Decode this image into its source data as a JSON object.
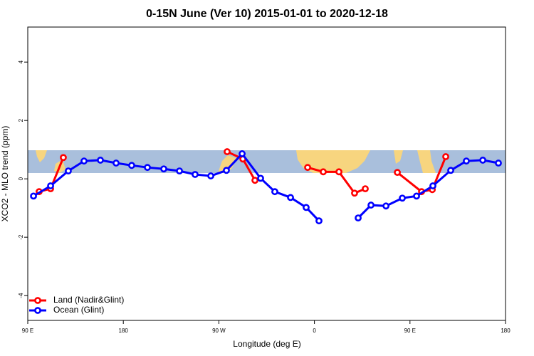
{
  "chart_data": {
    "type": "line",
    "title": "0-15N June (Ver 10)   2015-01-01 to 2020-12-18",
    "xlabel": "Longitude (deg E)",
    "ylabel": "XCO2 - MLO trend (ppm)",
    "xlim": [
      90,
      540
    ],
    "ylim": [
      -4.85,
      5.2
    ],
    "xticks": [
      {
        "value": 90,
        "label": "90 E"
      },
      180,
      {
        "value": 270,
        "label": "90 W"
      },
      {
        "value": 360,
        "label": "0"
      },
      {
        "value": 450,
        "label": "90 E"
      },
      {
        "value": 540,
        "label": "180"
      }
    ],
    "yticks": [
      -4,
      -2,
      0,
      2,
      4
    ],
    "legend": "lower left",
    "series": [
      {
        "name": "Land (Nadir&Glint)",
        "color": "#ff0000",
        "x": [
          100.7,
          111.5,
          123.5,
          200,
          277.8,
          292.6,
          304,
          330,
          353.6,
          368.3,
          383.1,
          397.8,
          407.9,
          423,
          438.1,
          460.9,
          471,
          483.7
        ],
        "values": [
          -0.44,
          -0.34,
          0.73,
          null,
          0.93,
          0.68,
          -0.05,
          null,
          0.39,
          0.24,
          0.24,
          -0.49,
          -0.34,
          null,
          0.22,
          -0.44,
          -0.37,
          0.76
        ]
      },
      {
        "name": "Ocean (Glint)",
        "color": "#0000ff",
        "x": [
          95.4,
          111.5,
          128.2,
          143,
          158.4,
          173.2,
          187.9,
          202.7,
          218.1,
          232.9,
          247.6,
          262.4,
          277.1,
          291.9,
          309.3,
          322.7,
          337.5,
          352.2,
          364.3,
          383,
          401.2,
          413.3,
          427.4,
          442.8,
          456.2,
          471.6,
          488.4,
          503.1,
          518.6,
          533.3
        ],
        "values": [
          -0.59,
          -0.24,
          0.27,
          0.61,
          0.64,
          0.54,
          0.46,
          0.39,
          0.34,
          0.27,
          0.15,
          0.1,
          0.29,
          0.86,
          0.02,
          -0.44,
          -0.64,
          -0.98,
          -1.44,
          null,
          -1.34,
          -0.9,
          -0.93,
          -0.66,
          -0.59,
          -0.24,
          0.29,
          0.61,
          0.64,
          0.54
        ]
      }
    ]
  }
}
